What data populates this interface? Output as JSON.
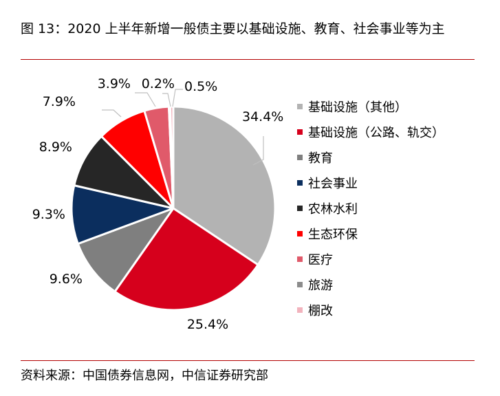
{
  "header": {
    "title": "图 13：2020 上半年新增一般债主要以基础设施、教育、社会事业等为主"
  },
  "footer": {
    "source": "资料来源：中国债券信息网，中信证券研究部"
  },
  "chart_data": {
    "type": "pie",
    "categories": [
      "基础设施（其他）",
      "基础设施（公路、轨交）",
      "教育",
      "社会事业",
      "农林水利",
      "生态环保",
      "医疗",
      "旅游",
      "棚改"
    ],
    "values": [
      34.4,
      25.4,
      9.6,
      9.3,
      8.9,
      7.9,
      3.9,
      0.2,
      0.5
    ],
    "labels": [
      "34.4%",
      "25.4%",
      "9.6%",
      "9.3%",
      "8.9%",
      "7.9%",
      "3.9%",
      "0.2%",
      "0.5%"
    ],
    "colors": [
      "#b3b3b3",
      "#d6001c",
      "#7f7f7f",
      "#0b2e5e",
      "#262626",
      "#ff0000",
      "#e05a6a",
      "#8c8c8c",
      "#f2b3bd"
    ],
    "legend_position": "right",
    "start_angle": "12 o'clock",
    "direction": "clockwise"
  }
}
